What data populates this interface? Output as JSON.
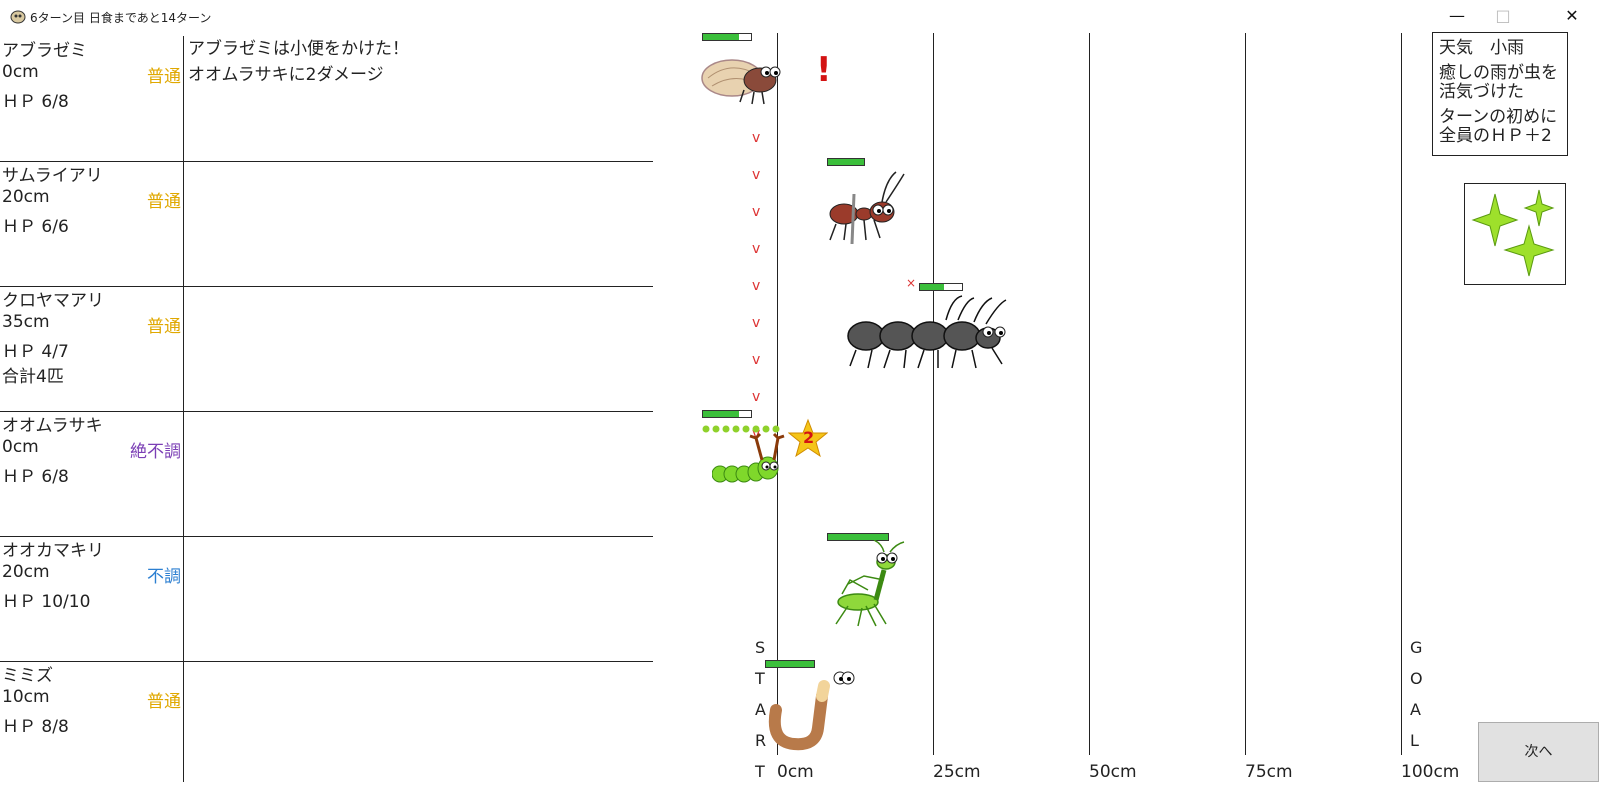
{
  "window": {
    "title": "6ターン目 日食まであと14ターン"
  },
  "bugs": [
    {
      "name": "アブラゼミ",
      "distance": "0cm",
      "status": "普通",
      "status_color": "#e0a800",
      "hp": "ＨＰ 6/8",
      "extra": "",
      "log": [
        "アブラゼミは小便をかけた！",
        "オオムラサキに2ダメージ"
      ],
      "hp_fraction": 0.75
    },
    {
      "name": "サムライアリ",
      "distance": "20cm",
      "status": "普通",
      "status_color": "#e0a800",
      "hp": "ＨＰ 6/6",
      "extra": "",
      "log": [],
      "hp_fraction": 1.0
    },
    {
      "name": "クロヤマアリ",
      "distance": "35cm",
      "status": "普通",
      "status_color": "#e0a800",
      "hp": "ＨＰ 4/7",
      "extra": "合計4匹",
      "log": [],
      "hp_fraction": 0.57
    },
    {
      "name": "オオムラサキ",
      "distance": "0cm",
      "status": "絶不調",
      "status_color": "#7b3fb5",
      "hp": "ＨＰ 6/8",
      "extra": "",
      "log": [],
      "hp_fraction": 0.75
    },
    {
      "name": "オオカマキリ",
      "distance": "20cm",
      "status": "不調",
      "status_color": "#2c7fd1",
      "hp": "ＨＰ 10/10",
      "extra": "",
      "log": [],
      "hp_fraction": 1.0
    },
    {
      "name": "ミミズ",
      "distance": "10cm",
      "status": "普通",
      "status_color": "#e0a800",
      "hp": "ＨＰ 8/8",
      "extra": "",
      "log": [],
      "hp_fraction": 1.0
    }
  ],
  "track": {
    "scale_labels": [
      "0cm",
      "25cm",
      "50cm",
      "75cm",
      "100cm"
    ],
    "start_letters": [
      "S",
      "T",
      "A",
      "R",
      "T"
    ],
    "goal_letters": [
      "G",
      "O",
      "A",
      "L"
    ]
  },
  "markers": {
    "exclaim": "!",
    "star_number": "2",
    "arrow_glyph": "v",
    "cross": "×"
  },
  "weather": {
    "line1": "天気　小雨",
    "line2": "癒しの雨が虫を活気づけた",
    "line3": "ターンの初めに全員のＨＰ＋2"
  },
  "next_button": {
    "label": "次へ"
  }
}
